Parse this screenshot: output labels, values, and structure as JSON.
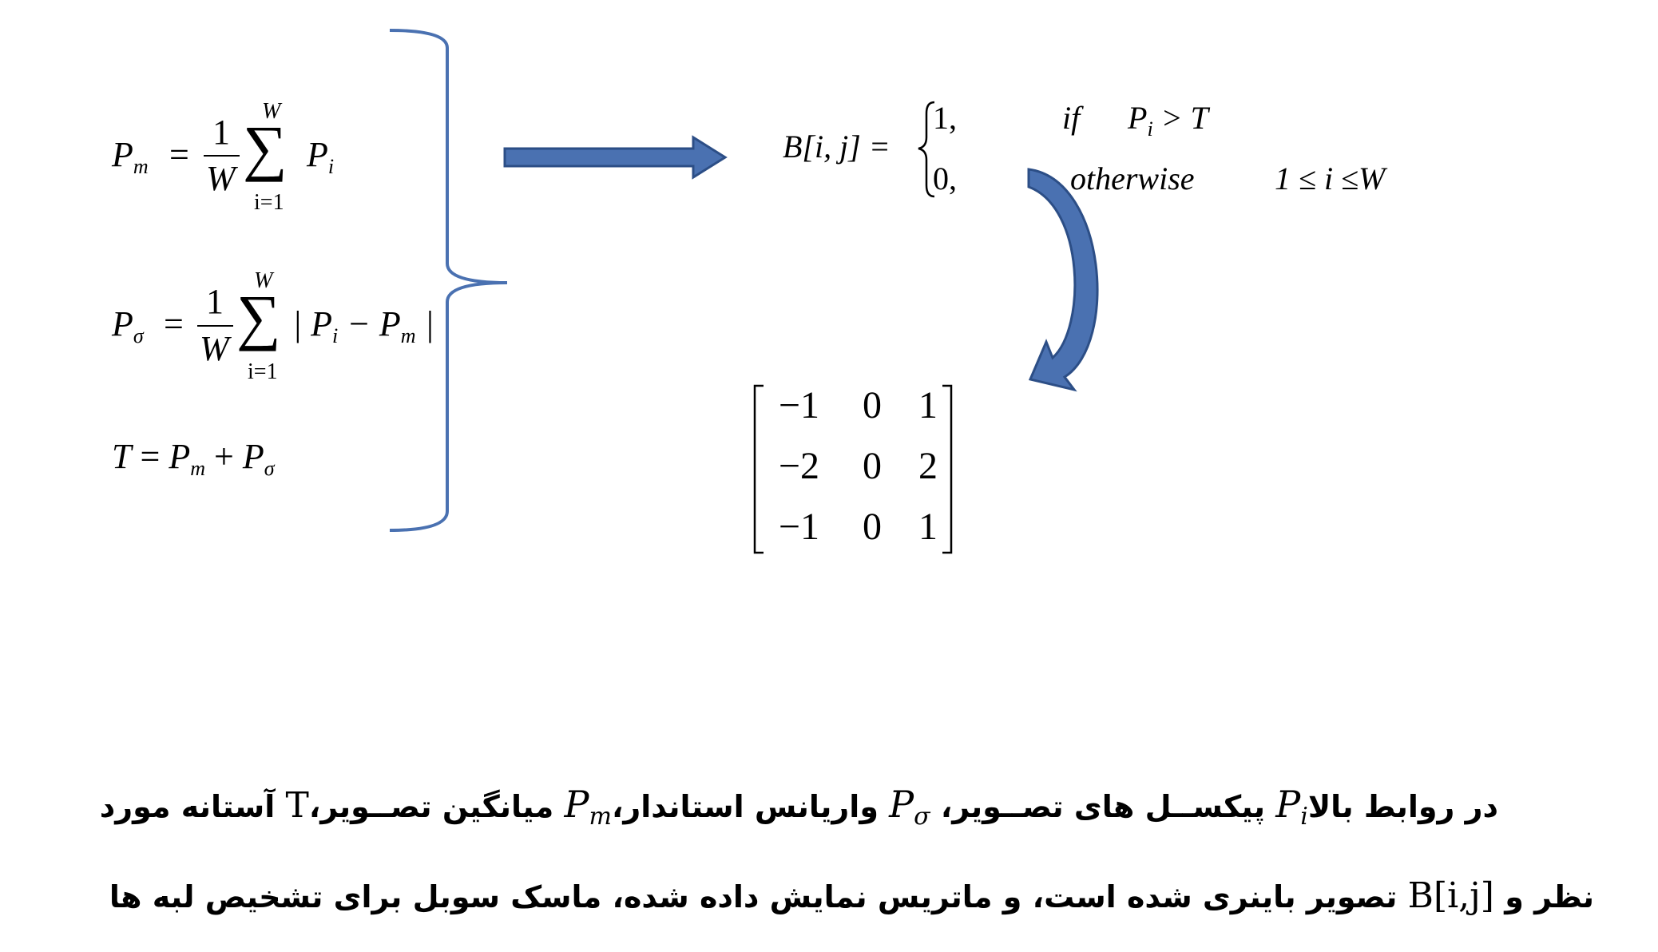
{
  "equations": {
    "pm": {
      "lhs": "P",
      "lhs_sub": "m",
      "eq": "=",
      "num": "1",
      "den": "W",
      "sum_top": "W",
      "sum_bottom": "i=1",
      "term": "P",
      "term_sub": "i"
    },
    "psigma": {
      "lhs": "P",
      "lhs_sub": "σ",
      "eq": "=",
      "num": "1",
      "den": "W",
      "sum_top": "W",
      "sum_bottom": "i=1",
      "term_open": "| P",
      "term_sub1": "i",
      "term_mid": " − P",
      "term_sub2": "m",
      "term_close": " |"
    },
    "threshold": {
      "lhs": "T",
      "eq": " = ",
      "a": "P",
      "a_sub": "m",
      "plus": " + ",
      "b": "P",
      "b_sub": "σ"
    }
  },
  "binary": {
    "lhs": "B[i, j] =",
    "row1_val": "1,",
    "row1_cond": "if",
    "row1_p": "P",
    "row1_psub": "i",
    "row1_rel": " > T",
    "row2_val": "0,",
    "row2_cond": "otherwise",
    "row2_range": "1 ≤ i ≤W"
  },
  "sobel_matrix": [
    [
      "−1",
      "0",
      "1"
    ],
    [
      "−2",
      "0",
      "2"
    ],
    [
      "−1",
      "0",
      "1"
    ]
  ],
  "colors": {
    "arrow": "#4a71b1",
    "arrow_outline": "#2c4e86",
    "brace": "#4a71b1"
  },
  "icons": {
    "right_arrow": "block-arrow-right-icon",
    "curved_arrow": "curved-arrow-icon",
    "brace": "right-brace"
  },
  "caption": {
    "line1": {
      "t1": "در روابط بالا",
      "pi": "P",
      "pi_sub": "i",
      "t2": " پیکســل های تصــویر، ",
      "ps": "P",
      "ps_sub": "σ",
      "t3": " واریانس استاندار،",
      "pm": "P",
      "pm_sub": "m",
      "t4": " میانگین تصــویر،",
      "T": "T",
      "t5": " آستانه مورد"
    },
    "line2": {
      "t1": "نظر و ",
      "B": "B[i,j]",
      "t2": " تصویر باینری شده است، و ماتریس نمایش داده شده، ماسک سوبل برای تشخیص لبه ها"
    }
  }
}
